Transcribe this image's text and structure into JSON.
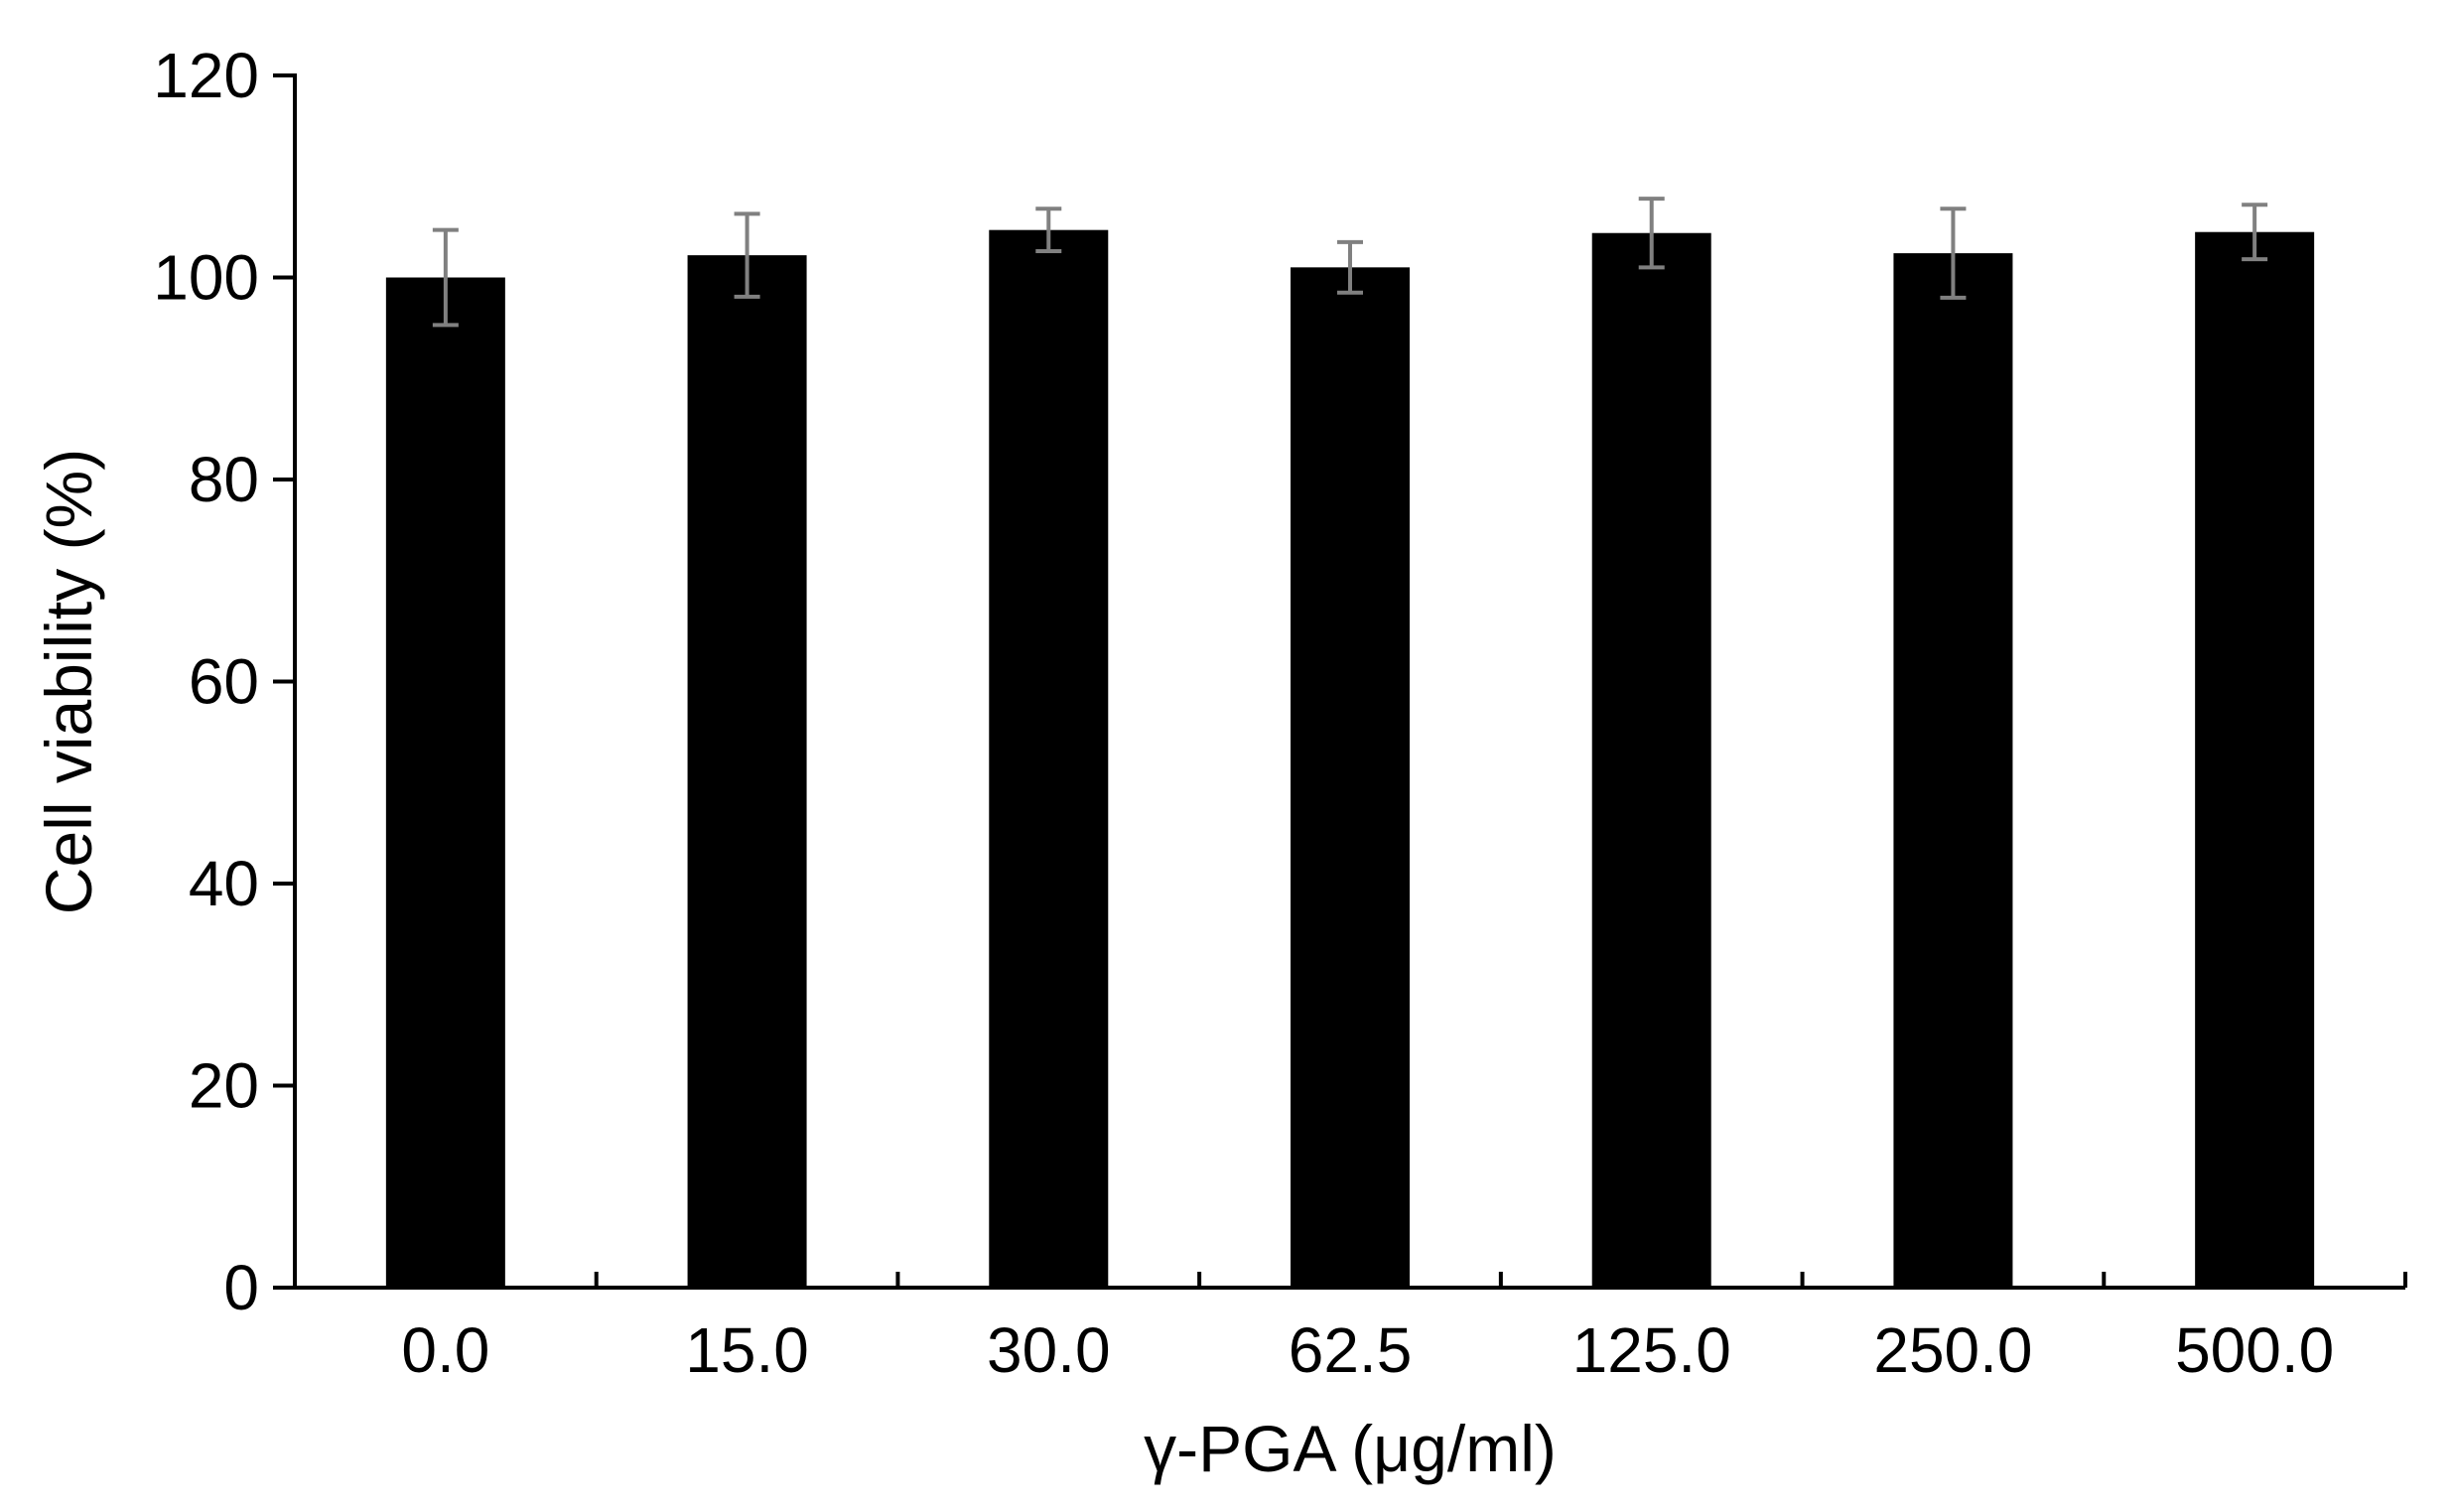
{
  "chart_data": {
    "type": "bar",
    "xlabel": "γ-PGA (μg/ml)",
    "ylabel": "Cell viability (%)",
    "categories": [
      "0.0",
      "15.0",
      "30.0",
      "62.5",
      "125.0",
      "250.0",
      "500.0"
    ],
    "values": [
      100.0,
      102.2,
      104.7,
      101.0,
      104.4,
      102.4,
      104.5
    ],
    "error": [
      4.7,
      4.1,
      2.1,
      2.5,
      3.4,
      4.4,
      2.7
    ],
    "ylim": [
      0,
      120
    ],
    "yticks": [
      "0",
      "20",
      "40",
      "60",
      "80",
      "100",
      "120"
    ],
    "grid": false,
    "legend": "none",
    "colors": {
      "bar": "#000000",
      "error_bar": "#808080",
      "axis": "#000000"
    }
  }
}
